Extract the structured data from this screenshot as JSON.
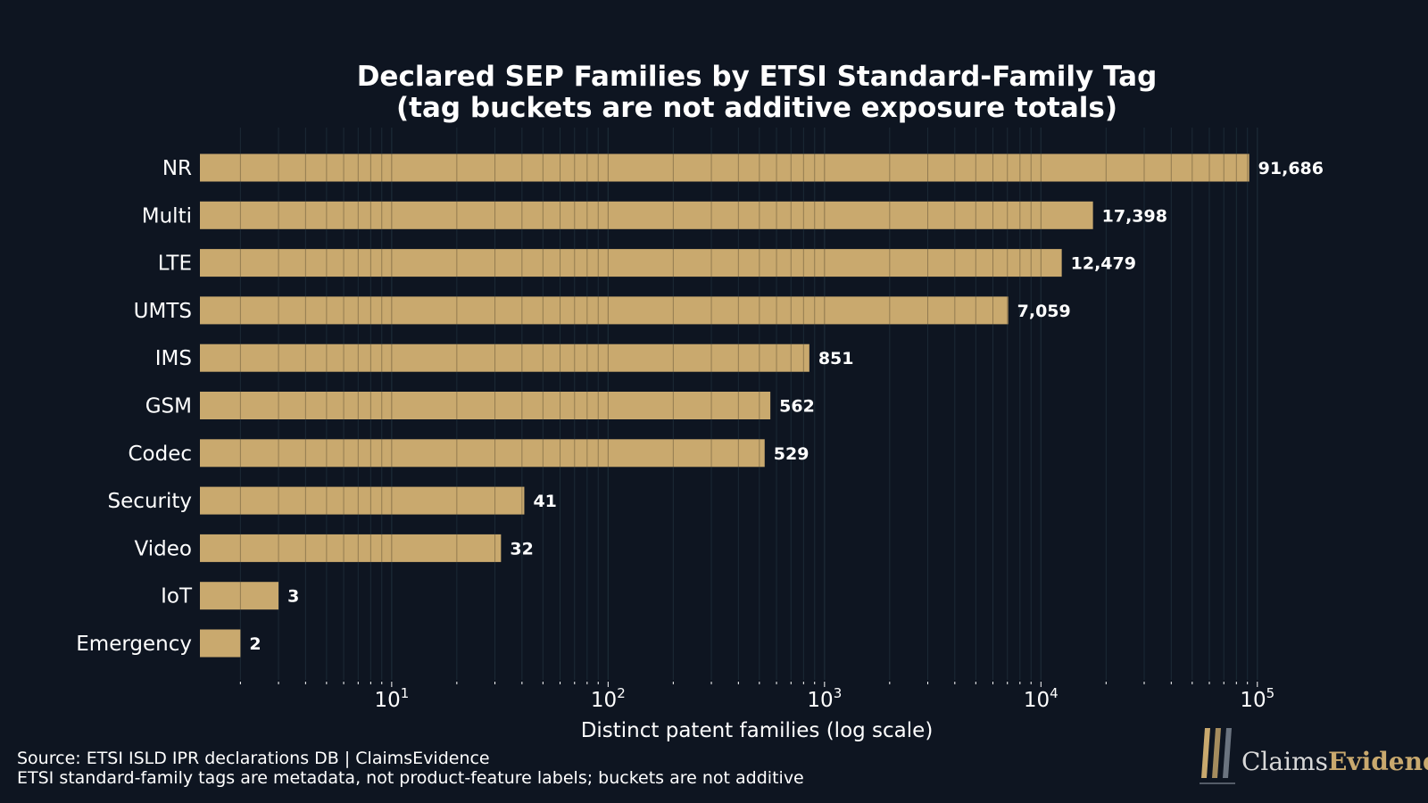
{
  "chart_data": {
    "type": "bar",
    "orientation": "horizontal",
    "title": [
      "Declared SEP Families by ETSI Standard-Family Tag",
      "(tag buckets are not additive exposure totals)"
    ],
    "xlabel": "Distinct patent families (log scale)",
    "ylabel": "",
    "x_scale": "log",
    "xlim": [
      1.3,
      120000
    ],
    "x_ticks": [
      {
        "value": 10,
        "base": "10",
        "exp": "1"
      },
      {
        "value": 100,
        "base": "10",
        "exp": "2"
      },
      {
        "value": 1000,
        "base": "10",
        "exp": "3"
      },
      {
        "value": 10000,
        "base": "10",
        "exp": "4"
      },
      {
        "value": 100000,
        "base": "10",
        "exp": "5"
      }
    ],
    "categories": [
      "NR",
      "Multi",
      "LTE",
      "UMTS",
      "IMS",
      "GSM",
      "Codec",
      "Security",
      "Video",
      "IoT",
      "Emergency"
    ],
    "values": [
      91686,
      17398,
      12479,
      7059,
      851,
      562,
      529,
      41,
      32,
      3,
      2
    ],
    "value_labels": [
      "91,686",
      "17,398",
      "12,479",
      "7,059",
      "851",
      "562",
      "529",
      "41",
      "32",
      "3",
      "2"
    ],
    "grid": true,
    "legend": "none"
  },
  "footer": {
    "source_line_1": "Source: ETSI ISLD IPR declarations DB | ClaimsEvidence",
    "source_line_2": "ETSI standard-family tags are metadata, not product-feature labels; buckets are not additive"
  },
  "logo": {
    "text_part_1": "Claims",
    "text_part_2": "Evidence"
  },
  "colors": {
    "background": "#0e1521",
    "bar": "#c9a96e",
    "grid": "#1c2a36",
    "text": "#ffffff",
    "accent": "#c9a96e"
  }
}
